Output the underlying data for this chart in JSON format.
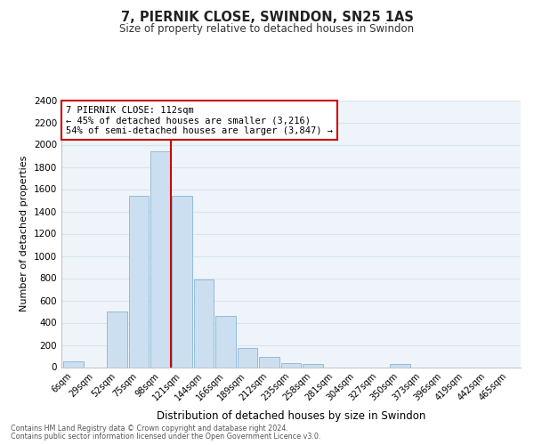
{
  "title": "7, PIERNIK CLOSE, SWINDON, SN25 1AS",
  "subtitle": "Size of property relative to detached houses in Swindon",
  "xlabel": "Distribution of detached houses by size in Swindon",
  "ylabel": "Number of detached properties",
  "bar_labels": [
    "6sqm",
    "29sqm",
    "52sqm",
    "75sqm",
    "98sqm",
    "121sqm",
    "144sqm",
    "166sqm",
    "189sqm",
    "212sqm",
    "235sqm",
    "258sqm",
    "281sqm",
    "304sqm",
    "327sqm",
    "350sqm",
    "373sqm",
    "396sqm",
    "419sqm",
    "442sqm",
    "465sqm"
  ],
  "bar_values": [
    50,
    0,
    500,
    1540,
    1940,
    1540,
    790,
    460,
    175,
    90,
    40,
    30,
    0,
    0,
    0,
    30,
    0,
    0,
    0,
    0,
    0
  ],
  "bar_color": "#ccdff0",
  "bar_edge_color": "#92bcd8",
  "vline_color": "#cc0000",
  "vline_index": 4.5,
  "ylim": [
    0,
    2400
  ],
  "yticks": [
    0,
    200,
    400,
    600,
    800,
    1000,
    1200,
    1400,
    1600,
    1800,
    2000,
    2200,
    2400
  ],
  "annotation_line1": "7 PIERNIK CLOSE: 112sqm",
  "annotation_line2": "← 45% of detached houses are smaller (3,216)",
  "annotation_line3": "54% of semi-detached houses are larger (3,847) →",
  "footer_line1": "Contains HM Land Registry data © Crown copyright and database right 2024.",
  "footer_line2": "Contains public sector information licensed under the Open Government Licence v3.0.",
  "background_color": "#ffffff",
  "grid_color": "#d8e4ed",
  "plot_bg_color": "#eef4f9"
}
